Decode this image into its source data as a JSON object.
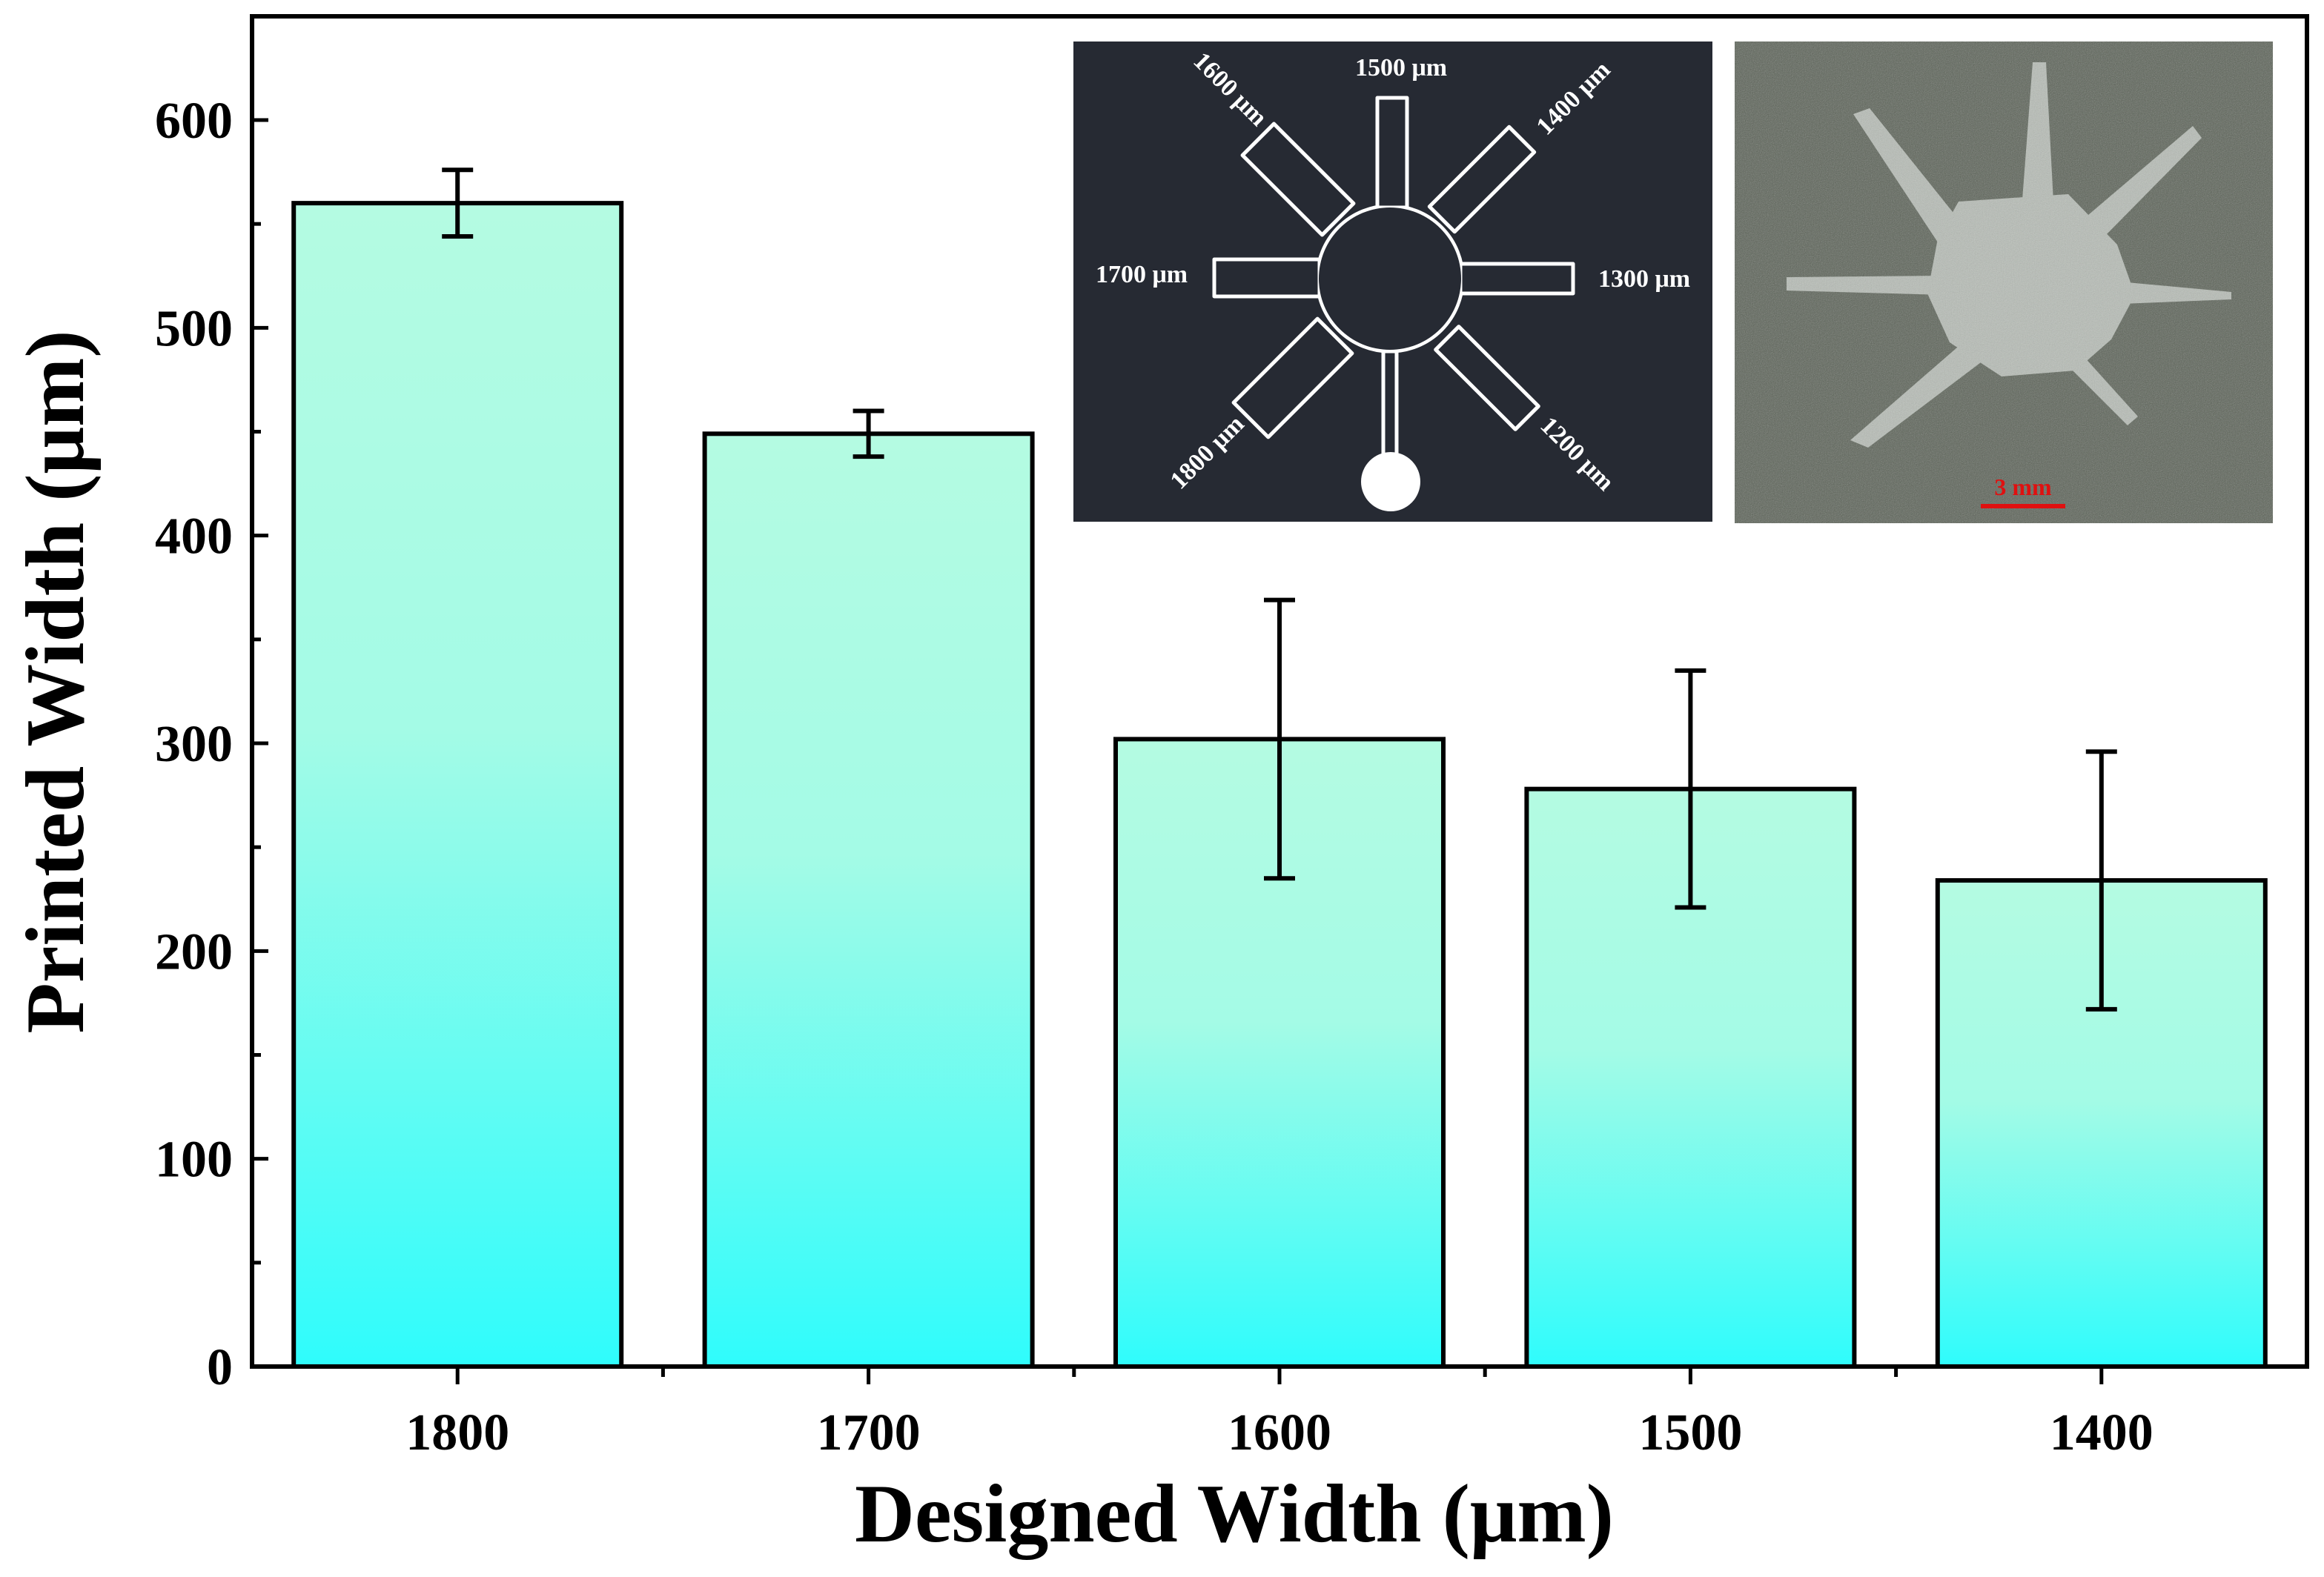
{
  "chart_data": {
    "type": "bar",
    "title": "",
    "xlabel": "Designed Width (μm)",
    "ylabel": "Printed Width (μm)",
    "categories": [
      "1800",
      "1700",
      "1600",
      "1500",
      "1400"
    ],
    "values": [
      560,
      449,
      302,
      278,
      234
    ],
    "errors": [
      16,
      11,
      67,
      57,
      62
    ],
    "ylim": [
      0,
      650
    ],
    "yticks": [
      "0",
      "100",
      "200",
      "300",
      "400",
      "500",
      "600"
    ],
    "grid": false,
    "colors": {
      "bar_top": "#b4fbe2",
      "bar_bottom": "#2ffcfc",
      "stroke": "#000000"
    }
  },
  "inset_design": {
    "labels": [
      "1500 μm",
      "1400 μm",
      "1300 μm",
      "1200 μm",
      "1800 μm",
      "1700 μm",
      "1600 μm"
    ],
    "background": "#262a33"
  },
  "inset_photo": {
    "scale_label": "3 mm",
    "background": "#5b6257"
  }
}
